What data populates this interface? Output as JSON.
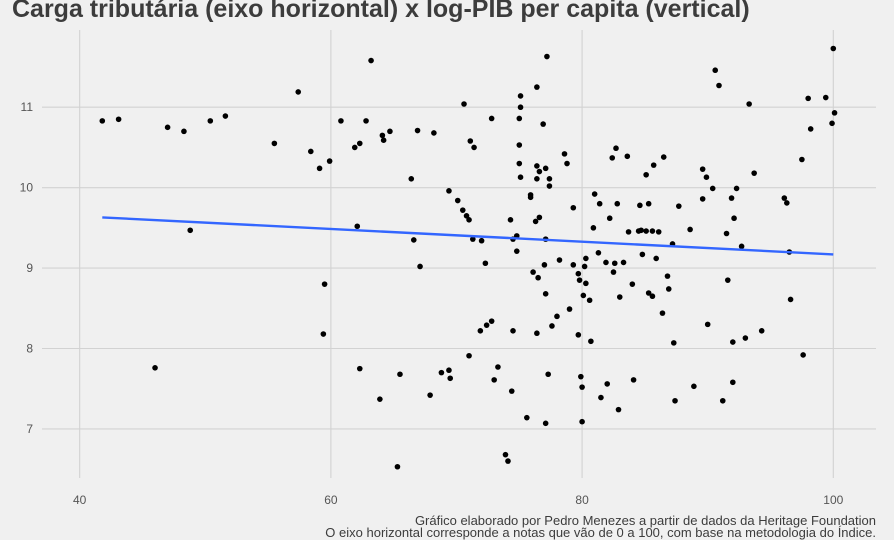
{
  "chart_data": {
    "type": "scatter",
    "title": "Carga tributária (eixo horizontal) x log-PIB per capita (vertical)",
    "caption": [
      "Gráfico elaborado por Pedro Menezes a partir de dados da Heritage Foundation",
      "O eixo horizontal corresponde a notas que vão de 0 a 100, com base na metodologia do Índice."
    ],
    "xlim": [
      37.0,
      103.4
    ],
    "ylim": [
      6.39,
      11.96
    ],
    "x_ticks": [
      40,
      60,
      80,
      100
    ],
    "y_ticks": [
      7,
      8,
      9,
      10,
      11
    ],
    "grid": true,
    "x": [
      41.8,
      43.1,
      48.8,
      46.0,
      47.0,
      48.3,
      50.4,
      51.6,
      55.5,
      57.4,
      58.4,
      59.1,
      59.9,
      59.5,
      59.4,
      60.8,
      61.9,
      62.3,
      62.1,
      62.3,
      62.8,
      63.2,
      64.1,
      64.2,
      64.7,
      63.9,
      65.5,
      65.3,
      66.4,
      66.6,
      66.9,
      67.1,
      67.9,
      68.2,
      68.8,
      69.4,
      69.4,
      69.5,
      70.1,
      70.5,
      70.6,
      70.8,
      71.1,
      71.4,
      71.0,
      71.0,
      71.3,
      72.0,
      72.3,
      71.9,
      72.4,
      72.8,
      72.8,
      73.0,
      73.3,
      73.9,
      74.1,
      74.3,
      74.5,
      74.8,
      74.8,
      74.5,
      74.4,
      75.0,
      75.0,
      75.0,
      75.1,
      75.1,
      75.1,
      75.9,
      75.9,
      75.6,
      76.1,
      76.4,
      76.4,
      76.6,
      76.4,
      76.3,
      76.6,
      76.5,
      76.4,
      76.9,
      77.1,
      77.2,
      77.1,
      77.0,
      77.1,
      77.1,
      77.3,
      77.4,
      77.4,
      77.6,
      78.0,
      78.2,
      78.6,
      78.8,
      79.0,
      79.3,
      79.3,
      79.7,
      79.8,
      79.7,
      79.9,
      80.0,
      80.0,
      80.1,
      80.3,
      80.2,
      80.6,
      80.7,
      80.3,
      80.9,
      81.0,
      81.4,
      81.3,
      81.5,
      81.9,
      82.0,
      82.2,
      82.4,
      82.5,
      82.7,
      82.6,
      82.8,
      82.9,
      83.0,
      83.3,
      83.6,
      83.7,
      84.0,
      84.1,
      84.5,
      84.6,
      84.7,
      84.8,
      85.1,
      85.1,
      85.3,
      85.3,
      85.6,
      85.6,
      85.7,
      85.9,
      86.1,
      86.4,
      86.5,
      86.8,
      86.9,
      87.2,
      87.3,
      87.4,
      87.7,
      88.6,
      88.9,
      89.6,
      89.6,
      89.9,
      90.0,
      90.4,
      90.6,
      90.9,
      91.2,
      91.5,
      91.6,
      91.9,
      92.0,
      92.0,
      92.1,
      92.3,
      92.7,
      93.0,
      93.3,
      93.7,
      94.3,
      96.1,
      96.3,
      96.5,
      96.6,
      97.5,
      97.6,
      98.0,
      98.2,
      99.4,
      100.0,
      100.1,
      99.9
    ],
    "y": [
      10.83,
      10.85,
      9.47,
      7.76,
      10.75,
      10.7,
      10.83,
      10.89,
      10.55,
      11.19,
      10.45,
      10.24,
      10.33,
      8.8,
      8.18,
      10.83,
      10.5,
      10.55,
      9.52,
      7.75,
      10.83,
      11.58,
      10.65,
      10.59,
      10.7,
      7.37,
      7.68,
      6.53,
      10.11,
      9.35,
      10.71,
      9.02,
      7.42,
      10.68,
      7.7,
      9.96,
      7.73,
      7.63,
      9.84,
      9.72,
      11.04,
      9.65,
      10.58,
      10.5,
      9.6,
      7.91,
      9.36,
      9.34,
      9.06,
      8.22,
      8.29,
      8.34,
      10.86,
      7.61,
      7.77,
      6.68,
      6.6,
      9.6,
      9.36,
      9.4,
      9.21,
      8.22,
      7.47,
      10.86,
      10.53,
      10.3,
      11.0,
      11.14,
      10.13,
      9.91,
      9.88,
      7.14,
      8.95,
      10.27,
      11.25,
      10.2,
      10.11,
      9.58,
      9.63,
      8.88,
      8.19,
      10.79,
      10.24,
      11.63,
      8.68,
      9.04,
      9.36,
      7.07,
      7.68,
      10.11,
      10.02,
      8.28,
      8.4,
      9.1,
      10.42,
      10.3,
      8.49,
      9.04,
      9.75,
      8.93,
      8.85,
      8.17,
      7.65,
      7.52,
      7.09,
      8.66,
      9.12,
      9.02,
      8.6,
      8.09,
      8.81,
      9.5,
      9.92,
      9.8,
      9.19,
      7.39,
      9.07,
      7.56,
      9.62,
      10.37,
      8.95,
      10.49,
      9.06,
      9.8,
      7.24,
      8.64,
      9.07,
      10.39,
      9.45,
      8.8,
      7.61,
      9.46,
      9.78,
      9.47,
      9.17,
      10.16,
      9.46,
      9.8,
      8.69,
      8.65,
      9.46,
      10.28,
      9.12,
      9.45,
      8.44,
      10.38,
      8.9,
      8.74,
      9.3,
      8.07,
      7.35,
      9.77,
      9.48,
      7.53,
      9.86,
      10.23,
      10.13,
      8.3,
      9.99,
      11.46,
      11.27,
      7.35,
      9.43,
      8.85,
      9.87,
      7.58,
      8.08,
      9.62,
      9.99,
      9.27,
      8.13,
      11.04,
      10.18,
      8.22,
      9.87,
      9.81,
      9.2,
      8.61,
      10.35,
      7.92,
      11.11,
      10.73,
      11.12,
      11.73,
      10.93,
      10.8
    ],
    "trend_line": {
      "x": [
        41.8,
        100.0
      ],
      "y": [
        9.63,
        9.17
      ]
    },
    "colors": {
      "background": "#f0f0f0",
      "grid": "#d2d2d2",
      "point": "#000000",
      "trend_line": "#3366ff"
    }
  }
}
